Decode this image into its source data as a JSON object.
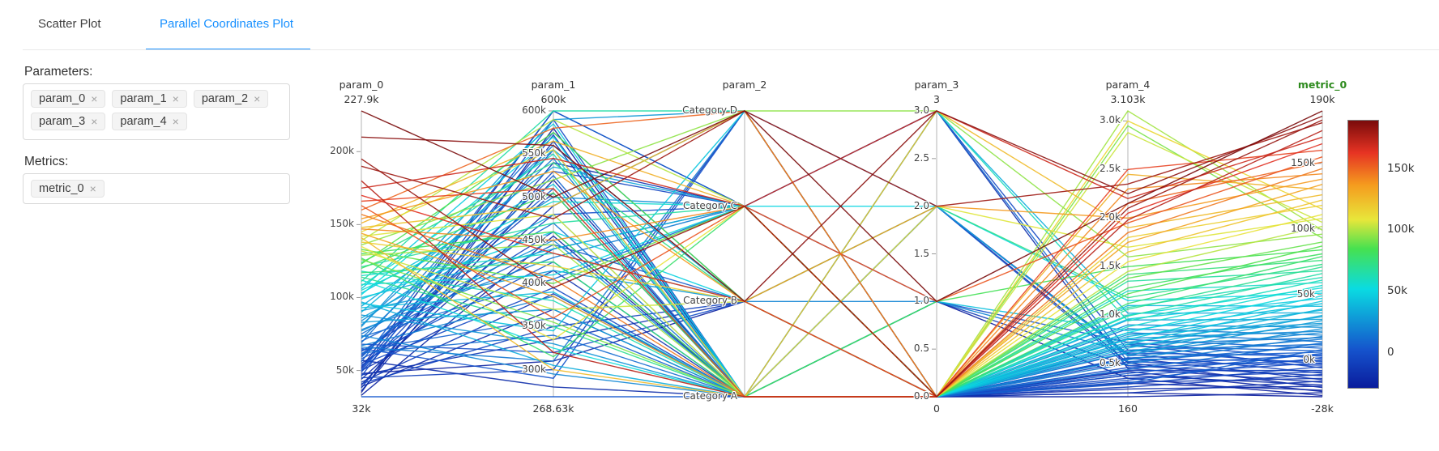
{
  "tabs": {
    "items": [
      {
        "label": "Scatter Plot",
        "active": false
      },
      {
        "label": "Parallel Coordinates Plot",
        "active": true
      }
    ],
    "active_color": "#1890ff"
  },
  "sidebar": {
    "parameters_label": "Parameters:",
    "parameter_tags": [
      "param_0",
      "param_1",
      "param_2",
      "param_3",
      "param_4"
    ],
    "metrics_label": "Metrics:",
    "metric_tags": [
      "metric_0"
    ],
    "tag_remove_symbol": "×"
  },
  "chart_data": {
    "type": "parallel-coordinates",
    "record_fields": [
      "param_0",
      "param_1",
      "param_2",
      "param_3",
      "param_4",
      "metric_0"
    ],
    "axes": [
      {
        "name": "param_0",
        "max_label": "227.9k",
        "min_label": "32k",
        "min": 32000,
        "max": 227900,
        "ticks": [
          {
            "v": 50000,
            "label": "50k"
          },
          {
            "v": 100000,
            "label": "100k"
          },
          {
            "v": 150000,
            "label": "150k"
          },
          {
            "v": 200000,
            "label": "200k"
          }
        ]
      },
      {
        "name": "param_1",
        "max_label": "600k",
        "min_label": "268.63k",
        "min": 268630,
        "max": 600000,
        "ticks": [
          {
            "v": 300000,
            "label": "300k"
          },
          {
            "v": 350000,
            "label": "350k"
          },
          {
            "v": 400000,
            "label": "400k"
          },
          {
            "v": 450000,
            "label": "450k"
          },
          {
            "v": 500000,
            "label": "500k"
          },
          {
            "v": 550000,
            "label": "550k"
          },
          {
            "v": 600000,
            "label": "600k"
          }
        ]
      },
      {
        "name": "param_2",
        "max_label": "",
        "min_label": "",
        "categories": [
          "Category A",
          "Category B",
          "Category C",
          "Category D"
        ]
      },
      {
        "name": "param_3",
        "max_label": "3",
        "min_label": "0",
        "min": 0,
        "max": 3,
        "ticks": [
          {
            "v": 0,
            "label": "0.0"
          },
          {
            "v": 0.5,
            "label": "0.5"
          },
          {
            "v": 1,
            "label": "1.0"
          },
          {
            "v": 1.5,
            "label": "1.5"
          },
          {
            "v": 2,
            "label": "2.0"
          },
          {
            "v": 2.5,
            "label": "2.5"
          },
          {
            "v": 3,
            "label": "3.0"
          }
        ]
      },
      {
        "name": "param_4",
        "max_label": "3.103k",
        "min_label": "160",
        "min": 160,
        "max": 3103,
        "ticks": [
          {
            "v": 500,
            "label": "0.5k"
          },
          {
            "v": 1000,
            "label": "1.0k"
          },
          {
            "v": 1500,
            "label": "1.5k"
          },
          {
            "v": 2000,
            "label": "2.0k"
          },
          {
            "v": 2500,
            "label": "2.5k"
          },
          {
            "v": 3000,
            "label": "3.0k"
          }
        ]
      },
      {
        "name": "metric_0",
        "is_metric": true,
        "title_color": "#2e8b1e",
        "max_label": "190k",
        "min_label": "-28k",
        "min": -28000,
        "max": 190000,
        "ticks": [
          {
            "v": 0,
            "label": "0k"
          },
          {
            "v": 50000,
            "label": "50k"
          },
          {
            "v": 100000,
            "label": "100k"
          },
          {
            "v": 150000,
            "label": "150k"
          }
        ]
      }
    ],
    "colorbar": {
      "min": -28000,
      "max": 190000,
      "ticks": [
        {
          "v": 0,
          "label": "0"
        },
        {
          "v": 50000,
          "label": "50k"
        },
        {
          "v": 100000,
          "label": "100k"
        },
        {
          "v": 150000,
          "label": "150k"
        }
      ],
      "stops": [
        {
          "t": 0.0,
          "color": "#0a1c9c"
        },
        {
          "t": 0.14,
          "color": "#1552cc"
        },
        {
          "t": 0.37,
          "color": "#0adbe2"
        },
        {
          "t": 0.52,
          "color": "#46e150"
        },
        {
          "t": 0.63,
          "color": "#e8e63a"
        },
        {
          "t": 0.76,
          "color": "#f59b1e"
        },
        {
          "t": 0.88,
          "color": "#e63323"
        },
        {
          "t": 1.0,
          "color": "#7a0b0b"
        }
      ]
    },
    "records": [
      [
        40000,
        520000,
        0,
        0,
        200,
        -28000
      ],
      [
        35000,
        580000,
        0,
        1,
        350,
        -27000
      ],
      [
        48000,
        310000,
        1,
        0,
        160,
        -25000
      ],
      [
        33000,
        455000,
        0,
        0,
        420,
        -24000
      ],
      [
        52000,
        600000,
        2,
        0,
        300,
        -23000
      ],
      [
        39000,
        370000,
        0,
        2,
        510,
        -21000
      ],
      [
        44000,
        490000,
        3,
        0,
        240,
        -20000
      ],
      [
        57000,
        280000,
        0,
        0,
        380,
        -19000
      ],
      [
        36000,
        540000,
        2,
        3,
        450,
        -17000
      ],
      [
        50000,
        415000,
        0,
        0,
        200,
        -16000
      ],
      [
        47000,
        335000,
        1,
        0,
        560,
        -15000
      ],
      [
        38000,
        565000,
        0,
        0,
        310,
        -14000
      ],
      [
        55000,
        440000,
        2,
        1,
        480,
        -12000
      ],
      [
        42000,
        388000,
        0,
        0,
        260,
        -11000
      ],
      [
        60000,
        505000,
        0,
        2,
        600,
        -10000
      ],
      [
        45000,
        300000,
        3,
        0,
        350,
        -9000
      ],
      [
        51000,
        572000,
        0,
        0,
        430,
        -8000
      ],
      [
        41000,
        350000,
        1,
        0,
        700,
        -6000
      ],
      [
        63000,
        460000,
        0,
        0,
        290,
        -5000
      ],
      [
        49000,
        530000,
        2,
        0,
        520,
        -4000
      ],
      [
        54000,
        395000,
        0,
        3,
        640,
        -3000
      ],
      [
        46000,
        590000,
        0,
        0,
        380,
        -2000
      ],
      [
        68000,
        320000,
        1,
        0,
        550,
        -1000
      ],
      [
        53000,
        480000,
        2,
        0,
        460,
        0
      ],
      [
        58000,
        425000,
        0,
        1,
        720,
        1000
      ],
      [
        50000,
        555000,
        0,
        0,
        330,
        2000
      ],
      [
        65000,
        290000,
        3,
        0,
        610,
        3000
      ],
      [
        61000,
        510000,
        0,
        2,
        480,
        4000
      ],
      [
        32000,
        268630,
        0,
        0,
        400,
        5000
      ],
      [
        70000,
        445000,
        1,
        0,
        560,
        6000
      ],
      [
        56000,
        600000,
        2,
        0,
        680,
        7000
      ],
      [
        64000,
        360000,
        0,
        0,
        300,
        8000
      ],
      [
        59000,
        525000,
        0,
        0,
        750,
        9000
      ],
      [
        73000,
        405000,
        2,
        3,
        520,
        11000
      ],
      [
        62000,
        340000,
        0,
        0,
        640,
        12000
      ],
      [
        69000,
        575000,
        1,
        0,
        440,
        13000
      ],
      [
        75000,
        470000,
        0,
        0,
        820,
        14000
      ],
      [
        66000,
        310000,
        3,
        2,
        580,
        16000
      ],
      [
        72000,
        545000,
        0,
        0,
        700,
        17000
      ],
      [
        78000,
        430000,
        2,
        0,
        500,
        18000
      ],
      [
        67000,
        385000,
        0,
        0,
        860,
        19000
      ],
      [
        81000,
        560000,
        1,
        1,
        620,
        21000
      ],
      [
        74000,
        295000,
        0,
        0,
        760,
        22000
      ],
      [
        84000,
        500000,
        2,
        0,
        540,
        24000
      ],
      [
        77000,
        450000,
        0,
        0,
        900,
        25000
      ],
      [
        88000,
        330000,
        0,
        0,
        680,
        27000
      ],
      [
        80000,
        590000,
        3,
        0,
        800,
        28000
      ],
      [
        91000,
        415000,
        1,
        2,
        590,
        30000
      ],
      [
        83000,
        370000,
        0,
        0,
        950,
        31000
      ],
      [
        94000,
        535000,
        2,
        0,
        720,
        33000
      ],
      [
        86000,
        480000,
        0,
        0,
        620,
        34000
      ],
      [
        97000,
        305000,
        0,
        3,
        1020,
        36000
      ],
      [
        90000,
        555000,
        1,
        0,
        780,
        38000
      ],
      [
        100000,
        440000,
        2,
        0,
        660,
        39000
      ],
      [
        93000,
        390000,
        0,
        0,
        1100,
        41000
      ],
      [
        103000,
        515000,
        0,
        1,
        840,
        43000
      ],
      [
        96000,
        345000,
        3,
        0,
        700,
        45000
      ],
      [
        106000,
        585000,
        0,
        0,
        960,
        47000
      ],
      [
        99000,
        460000,
        1,
        0,
        750,
        49000
      ],
      [
        109000,
        410000,
        2,
        2,
        1150,
        51000
      ],
      [
        102000,
        570000,
        0,
        0,
        820,
        53000
      ],
      [
        112000,
        325000,
        0,
        0,
        1000,
        55000
      ],
      [
        105000,
        495000,
        2,
        0,
        880,
        57000
      ],
      [
        115000,
        435000,
        1,
        0,
        1250,
        59000
      ],
      [
        108000,
        550000,
        0,
        3,
        940,
        61000
      ],
      [
        118000,
        380000,
        0,
        0,
        1080,
        63000
      ],
      [
        111000,
        600000,
        3,
        0,
        990,
        66000
      ],
      [
        121000,
        470000,
        2,
        0,
        1350,
        68000
      ],
      [
        114000,
        350000,
        0,
        0,
        1060,
        71000
      ],
      [
        124000,
        540000,
        1,
        2,
        1180,
        73000
      ],
      [
        117000,
        425000,
        0,
        0,
        1420,
        76000
      ],
      [
        127000,
        315000,
        2,
        0,
        1120,
        79000
      ],
      [
        120000,
        505000,
        0,
        0,
        1280,
        81000
      ],
      [
        130000,
        460000,
        0,
        1,
        1500,
        84000
      ],
      [
        123000,
        575000,
        1,
        0,
        1220,
        87000
      ],
      [
        133000,
        400000,
        2,
        0,
        1380,
        90000
      ],
      [
        126000,
        355000,
        0,
        0,
        2950,
        93000
      ],
      [
        136000,
        520000,
        3,
        3,
        1600,
        96000
      ],
      [
        129000,
        445000,
        0,
        0,
        3103,
        99000
      ],
      [
        139000,
        590000,
        2,
        0,
        1450,
        102000
      ],
      [
        132000,
        370000,
        1,
        0,
        2880,
        105000
      ],
      [
        142000,
        480000,
        0,
        2,
        1700,
        108000
      ],
      [
        135000,
        335000,
        2,
        0,
        1550,
        111000
      ],
      [
        145000,
        555000,
        0,
        0,
        3000,
        115000
      ],
      [
        138000,
        420000,
        1,
        0,
        1800,
        118000
      ],
      [
        148000,
        490000,
        3,
        0,
        1650,
        122000
      ],
      [
        141000,
        300000,
        0,
        3,
        1900,
        126000
      ],
      [
        151000,
        565000,
        2,
        0,
        2450,
        130000
      ],
      [
        144000,
        385000,
        0,
        0,
        1750,
        134000
      ],
      [
        154000,
        530000,
        1,
        2,
        2000,
        138000
      ],
      [
        147000,
        450000,
        2,
        0,
        2300,
        142000
      ],
      [
        157000,
        405000,
        0,
        0,
        1850,
        146000
      ],
      [
        160000,
        580000,
        3,
        0,
        2150,
        151000
      ],
      [
        163000,
        360000,
        2,
        1,
        1950,
        155000
      ],
      [
        166000,
        510000,
        0,
        0,
        2500,
        160000
      ],
      [
        170000,
        435000,
        1,
        0,
        2050,
        165000
      ],
      [
        175000,
        545000,
        2,
        3,
        2200,
        170000
      ],
      [
        180000,
        320000,
        0,
        0,
        1980,
        175000
      ],
      [
        190000,
        475000,
        3,
        2,
        2350,
        181000
      ],
      [
        195000,
        395000,
        2,
        0,
        2100,
        183000
      ],
      [
        210000,
        560000,
        1,
        3,
        2250,
        186000
      ],
      [
        227900,
        500000,
        3,
        1,
        2150,
        190000
      ]
    ]
  }
}
